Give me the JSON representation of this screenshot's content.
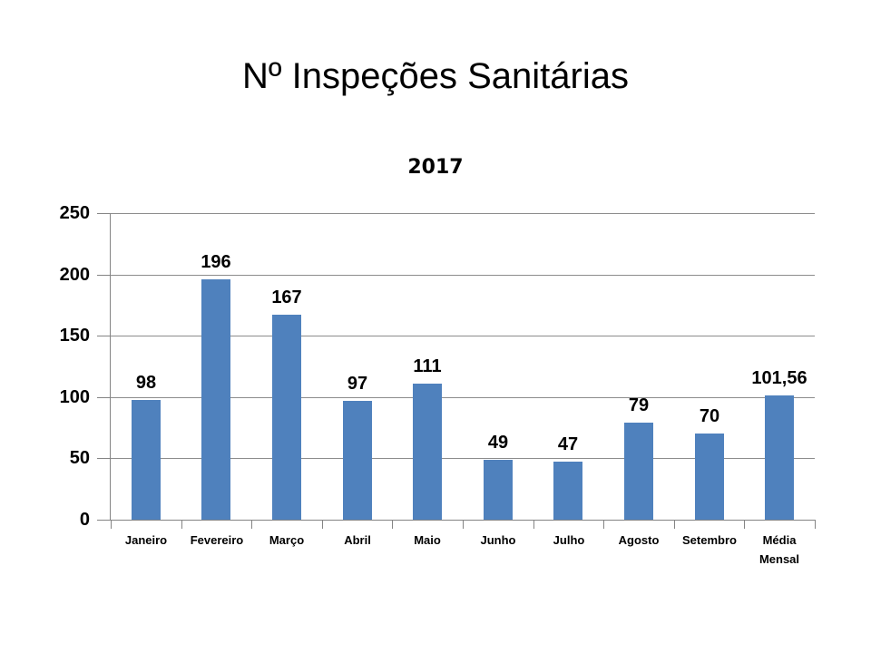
{
  "title": "Nº Inspeções Sanitárias",
  "chart_data": {
    "type": "bar",
    "title": "2017",
    "xlabel": "",
    "ylabel": "",
    "categories": [
      "Janeiro",
      "Fevereiro",
      "Março",
      "Abril",
      "Maio",
      "Junho",
      "Julho",
      "Agosto",
      "Setembro",
      "Média Mensal"
    ],
    "values": [
      98,
      196,
      167,
      97,
      111,
      49,
      47,
      79,
      70,
      101.56
    ],
    "data_labels": [
      "98",
      "196",
      "167",
      "97",
      "111",
      "49",
      "47",
      "79",
      "70",
      "101,56"
    ],
    "ylim": [
      0,
      250
    ],
    "yticks": [
      0,
      50,
      100,
      150,
      200,
      250
    ],
    "grid": true,
    "legend_position": "none",
    "bar_color": "#4F81BD",
    "gridline_color": "#8C8C8C",
    "axis_color": "#848484",
    "text_color": "#000000",
    "background_color": "#FFFFFF"
  }
}
